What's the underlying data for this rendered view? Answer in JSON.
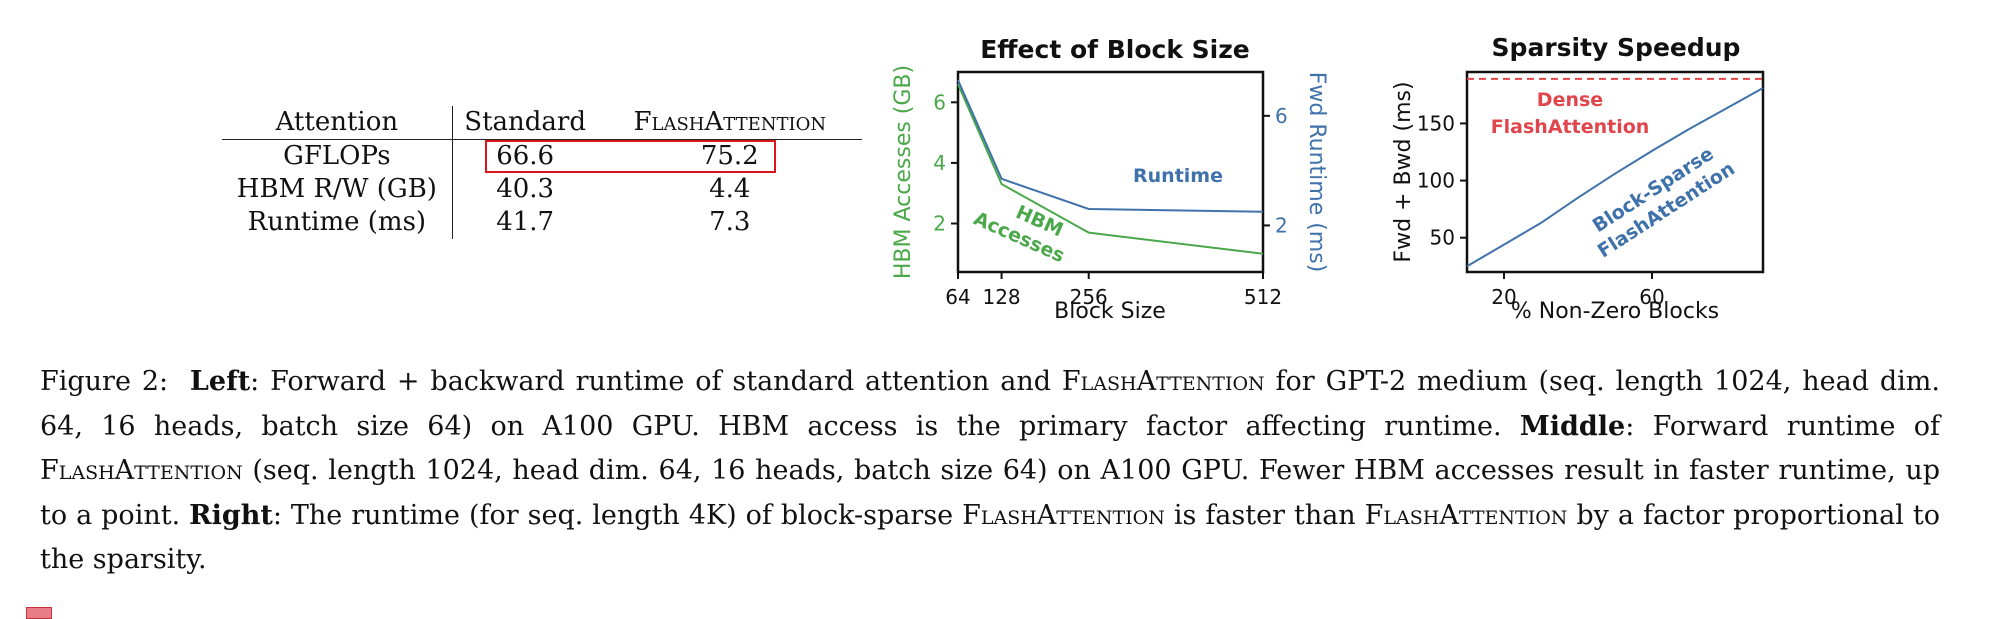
{
  "figure": {
    "table": {
      "headers": [
        "Attention",
        "Standard",
        "FlashAttention"
      ],
      "rows": [
        [
          "GFLOPs",
          "66.6",
          "75.2"
        ],
        [
          "HBM R/W (GB)",
          "40.3",
          "4.4"
        ],
        [
          "Runtime (ms)",
          "41.7",
          "7.3"
        ]
      ],
      "highlighted_row": "GFLOPs",
      "highlight_color": "#d8141c"
    },
    "caption": {
      "figure_label": "Figure 2:",
      "left_label": "Left",
      "left_text_1": ": Forward + backward runtime of standard attention and ",
      "left_fa": "FlashAttention",
      "left_text_2": " for GPT-2 medium (seq. length 1024, head dim. 64, 16 heads, batch size 64) on A100 GPU. HBM access is the primary factor affecting runtime. ",
      "middle_label": "Middle",
      "middle_text_1": ": Forward runtime of ",
      "middle_fa": "FlashAttention",
      "middle_text_2": " (seq. length 1024, head dim. 64, 16 heads, batch size 64) on A100 GPU. Fewer HBM accesses result in faster runtime, up to a point. ",
      "right_label": "Right",
      "right_text_1": ": The runtime (for seq. length 4K) of block-sparse ",
      "right_fa_1": "FlashAttention",
      "right_text_2": " is faster than ",
      "right_fa_2": "FlashAttention",
      "right_text_3": " by a factor proportional to the sparsity."
    }
  },
  "chart_data": [
    {
      "type": "line",
      "title": "Effect of Block Size",
      "xlabel": "Block Size",
      "ylabel": "HBM Accesses (GB)",
      "ylabel_right": "Fwd Runtime (ms)",
      "x_ticks": [
        64,
        128,
        256,
        512
      ],
      "xlim": [
        64,
        512
      ],
      "ylim": [
        0.4,
        7.0
      ],
      "y_ticks": [
        2,
        4,
        6
      ],
      "ylim_right": [
        0.3,
        7.6
      ],
      "y_ticks_right": [
        2,
        6
      ],
      "grid": false,
      "series": [
        {
          "name": "HBM Accesses",
          "label_text": [
            "HBM",
            "Accesses"
          ],
          "axis": "left",
          "color": "#4aa84a",
          "x": [
            64,
            128,
            256,
            512
          ],
          "y": [
            6.6,
            3.3,
            1.7,
            1.0
          ]
        },
        {
          "name": "Runtime",
          "label_text": [
            "Runtime"
          ],
          "axis": "right",
          "color": "#3f72aa",
          "x": [
            64,
            128,
            256,
            512
          ],
          "y": [
            7.3,
            3.7,
            2.6,
            2.5
          ]
        }
      ],
      "left_axis_color": "#4aa84a",
      "right_axis_color": "#3f72aa"
    },
    {
      "type": "line",
      "title": "Sparsity Speedup",
      "xlabel": "% Non-Zero Blocks",
      "ylabel": "Fwd + Bwd (ms)",
      "x_ticks": [
        20,
        60
      ],
      "xlim": [
        10,
        90
      ],
      "ylim": [
        20,
        195
      ],
      "y_ticks": [
        50,
        100,
        150
      ],
      "grid": false,
      "series": [
        {
          "name": "Dense FlashAttention",
          "label_text": [
            "Dense",
            "FlashAttention"
          ],
          "style": "dashed",
          "color": "#e0454b",
          "x": [
            10,
            90
          ],
          "y": [
            189,
            189
          ]
        },
        {
          "name": "Block-Sparse FlashAttention",
          "label_text": [
            "Block-Sparse",
            "FlashAttention"
          ],
          "style": "solid",
          "color": "#3f72aa",
          "x": [
            10,
            20,
            30,
            40,
            50,
            60,
            70,
            80,
            90
          ],
          "y": [
            25,
            44,
            63,
            85,
            106,
            126,
            145,
            163,
            181
          ]
        }
      ]
    }
  ]
}
